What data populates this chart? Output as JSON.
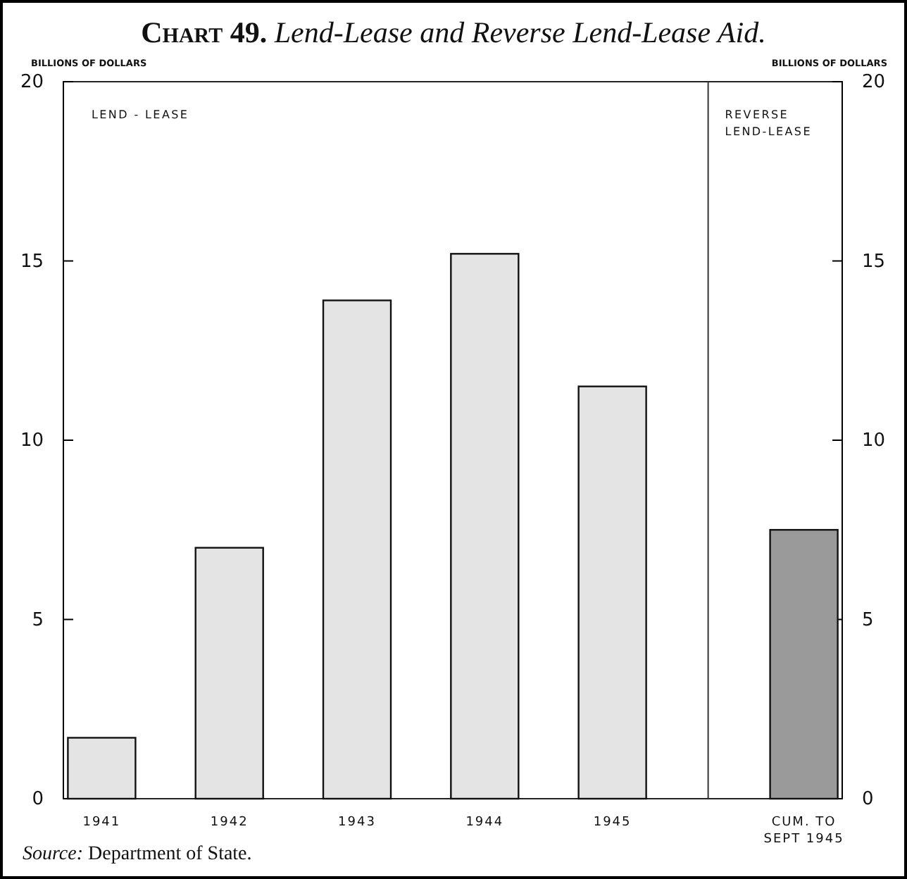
{
  "chart_data": {
    "type": "bar",
    "title": "Chart 49. Lend-Lease and Reverse Lend-Lease Aid.",
    "ylabel": "BILLIONS OF DOLLARS",
    "y2label": "BILLIONS OF DOLLARS",
    "categories": [
      "1941",
      "1942",
      "1943",
      "1944",
      "1945",
      "CUM. TO SEPT 1945"
    ],
    "values": [
      1.7,
      7.0,
      13.9,
      15.2,
      11.5,
      7.5
    ],
    "colors": [
      "#e4e4e4",
      "#e4e4e4",
      "#e4e4e4",
      "#e4e4e4",
      "#e4e4e4",
      "#9a9a9a"
    ],
    "ylim": [
      0,
      20
    ],
    "yticks": [
      0,
      5,
      10,
      15,
      20
    ],
    "y2lim": [
      0,
      20
    ],
    "y2ticks": [
      0,
      5,
      10,
      15,
      20
    ],
    "annotations": [
      "LEND - LEASE",
      "REVERSE LEND-LEASE",
      "Source: Department of State."
    ]
  }
}
